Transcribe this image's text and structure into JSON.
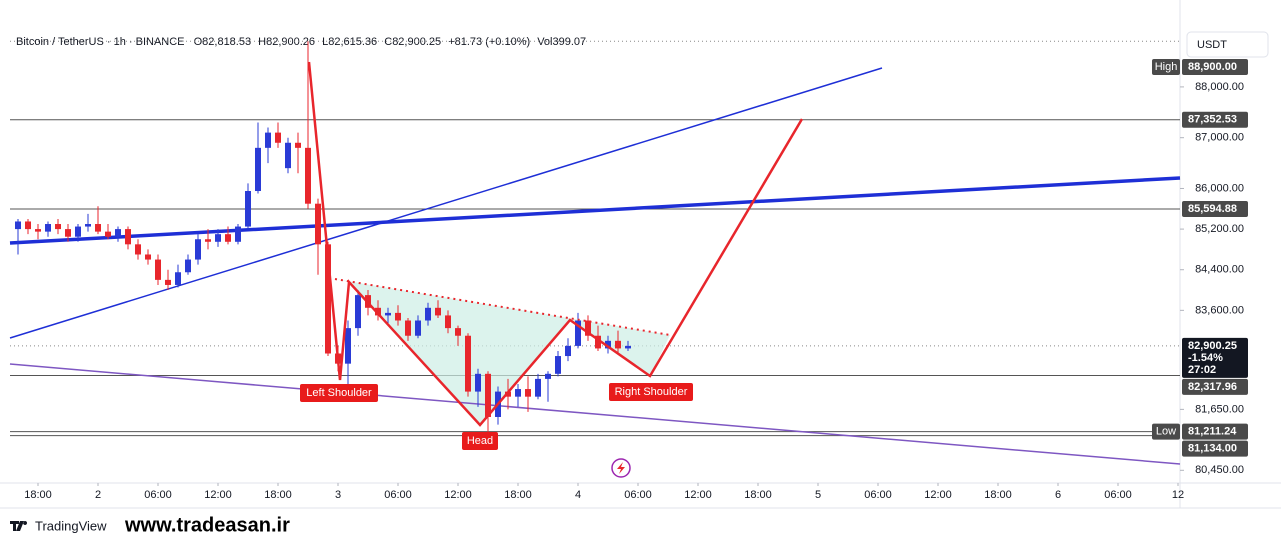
{
  "header": {
    "symbol": "Bitcoin / TetherUS · 1h · BINANCE",
    "o": "O",
    "open": "82,818.53",
    "h": "H",
    "high": "82,900.26",
    "l": "L",
    "low": "82,615.36",
    "c": "C",
    "close": "82,900.25",
    "change": "+81.73 (+0.10%)",
    "vol": "Vol",
    "volume": "399.07",
    "currency": "USDT"
  },
  "chart_data": {
    "type": "candlestick",
    "up_color": "#2a3bd6",
    "down_color": "#e8262c",
    "x": [
      -2,
      -1,
      0,
      1,
      2,
      3,
      4,
      5,
      6,
      7,
      8,
      9,
      10,
      11,
      12,
      13,
      14,
      15,
      16,
      17,
      18,
      19,
      20,
      21,
      22,
      23,
      24,
      25,
      26,
      27,
      28,
      29,
      30,
      31,
      32,
      33,
      34,
      35,
      36,
      37,
      38,
      39,
      40,
      41,
      42,
      43,
      44,
      45,
      46,
      47,
      48,
      49,
      50,
      51,
      52,
      53,
      54,
      55,
      56,
      57,
      58,
      59
    ],
    "open": [
      85200,
      85350,
      85200,
      85150,
      85300,
      85200,
      85050,
      85250,
      85300,
      85150,
      85050,
      85200,
      84900,
      84700,
      84600,
      84200,
      84100,
      84350,
      84600,
      85000,
      84950,
      85100,
      84950,
      85250,
      85950,
      86800,
      87100,
      86400,
      86900,
      86800,
      85700,
      84900,
      82750,
      82550,
      83250,
      83900,
      83650,
      83500,
      83550,
      83400,
      83100,
      83400,
      83650,
      83500,
      83250,
      83100,
      82000,
      82350,
      81500,
      82000,
      81900,
      82050,
      81900,
      82250,
      82350,
      82700,
      82900,
      83400,
      83100,
      82850,
      83000,
      82850
    ],
    "high": [
      85400,
      85400,
      85300,
      85350,
      85400,
      85300,
      85300,
      85500,
      85650,
      85300,
      85250,
      85250,
      85000,
      84800,
      84700,
      84400,
      84500,
      84700,
      85100,
      85200,
      85200,
      85250,
      85300,
      86100,
      87300,
      87200,
      87300,
      87000,
      87100,
      88900,
      85800,
      84950,
      82900,
      83400,
      84000,
      84000,
      83800,
      83650,
      83700,
      83450,
      83500,
      83750,
      83800,
      83600,
      83300,
      83150,
      82450,
      82400,
      82100,
      82250,
      82150,
      82300,
      82350,
      82400,
      82800,
      83050,
      83550,
      83500,
      83300,
      83100,
      83200,
      83000
    ],
    "low": [
      84700,
      85100,
      85000,
      85050,
      85100,
      84950,
      84950,
      85150,
      85100,
      85000,
      84950,
      84800,
      84600,
      84500,
      84100,
      84000,
      84050,
      84300,
      84500,
      84800,
      84850,
      84900,
      84900,
      85200,
      85900,
      86500,
      86800,
      86300,
      86300,
      85600,
      84300,
      82700,
      82400,
      82150,
      83100,
      83500,
      83400,
      83350,
      83300,
      83000,
      83050,
      83300,
      83450,
      83150,
      82900,
      81900,
      81700,
      81200,
      81350,
      81650,
      81700,
      81600,
      81850,
      81800,
      82300,
      82600,
      82850,
      83000,
      82800,
      82750,
      82750,
      82800
    ],
    "close": [
      85350,
      85200,
      85150,
      85300,
      85200,
      85050,
      85250,
      85300,
      85150,
      85050,
      85200,
      84900,
      84700,
      84600,
      84200,
      84100,
      84350,
      84600,
      85000,
      84950,
      85100,
      84950,
      85250,
      85950,
      86800,
      87100,
      86900,
      86900,
      86800,
      85700,
      84900,
      82750,
      82550,
      83250,
      83900,
      83650,
      83500,
      83550,
      83400,
      83100,
      83400,
      83650,
      83500,
      83250,
      83100,
      82000,
      82350,
      81500,
      82000,
      81900,
      82050,
      81900,
      82250,
      82350,
      82700,
      82900,
      83400,
      83100,
      82850,
      83000,
      82850,
      82900
    ],
    "xlim": [
      -2.8,
      114.2
    ],
    "xticks": [
      {
        "value": 0,
        "label": "18:00"
      },
      {
        "value": 6,
        "label": "2"
      },
      {
        "value": 12,
        "label": "06:00"
      },
      {
        "value": 18,
        "label": "12:00"
      },
      {
        "value": 24,
        "label": "18:00"
      },
      {
        "value": 30,
        "label": "3"
      },
      {
        "value": 36,
        "label": "06:00"
      },
      {
        "value": 42,
        "label": "12:00"
      },
      {
        "value": 48,
        "label": "18:00"
      },
      {
        "value": 54,
        "label": "4"
      },
      {
        "value": 60,
        "label": "06:00"
      },
      {
        "value": 66,
        "label": "12:00"
      },
      {
        "value": 72,
        "label": "18:00"
      },
      {
        "value": 78,
        "label": "5"
      },
      {
        "value": 84,
        "label": "06:00"
      },
      {
        "value": 90,
        "label": "12:00"
      },
      {
        "value": 96,
        "label": "18:00"
      },
      {
        "value": 102,
        "label": "6"
      },
      {
        "value": 108,
        "label": "06:00"
      },
      {
        "value": 114,
        "label": "12"
      }
    ],
    "ylim": [
      80200,
      89160
    ],
    "yticks": [
      {
        "value": 88000,
        "label": "88,000.00"
      },
      {
        "value": 87000,
        "label": "87,000.00"
      },
      {
        "value": 86000,
        "label": "86,000.00"
      },
      {
        "value": 85200,
        "label": "85,200.00"
      },
      {
        "value": 84400,
        "label": "84,400.00"
      },
      {
        "value": 83600,
        "label": "83,600.00"
      },
      {
        "value": 81650,
        "label": "81,650.00"
      },
      {
        "value": 80450,
        "label": "80,450.00"
      }
    ],
    "grid": false,
    "price_lines": [
      {
        "value": 88900,
        "label": "88,900.00",
        "tag": "High",
        "style": "dotted"
      },
      {
        "value": 87352.53,
        "label": "87,352.53",
        "style": "solid"
      },
      {
        "value": 85594.88,
        "label": "85,594.88",
        "style": "solid"
      },
      {
        "value": 82900.25,
        "label": "82,900.25",
        "change": "-1.54%",
        "countdown": "27:02",
        "style": "dotted"
      },
      {
        "value": 82317.96,
        "label": "82,317.96",
        "style": "solid"
      },
      {
        "value": 81211.24,
        "label": "81,211.24",
        "tag": "Low",
        "style": "solid"
      },
      {
        "value": 81134,
        "label": "81,134.00",
        "style": "solid"
      }
    ]
  },
  "annotations": {
    "left": "Left Shoulder",
    "head": "Head",
    "right": "Right Shoulder"
  },
  "footer": {
    "brand": "TradingView",
    "site": "www.tradeasan.ir"
  }
}
